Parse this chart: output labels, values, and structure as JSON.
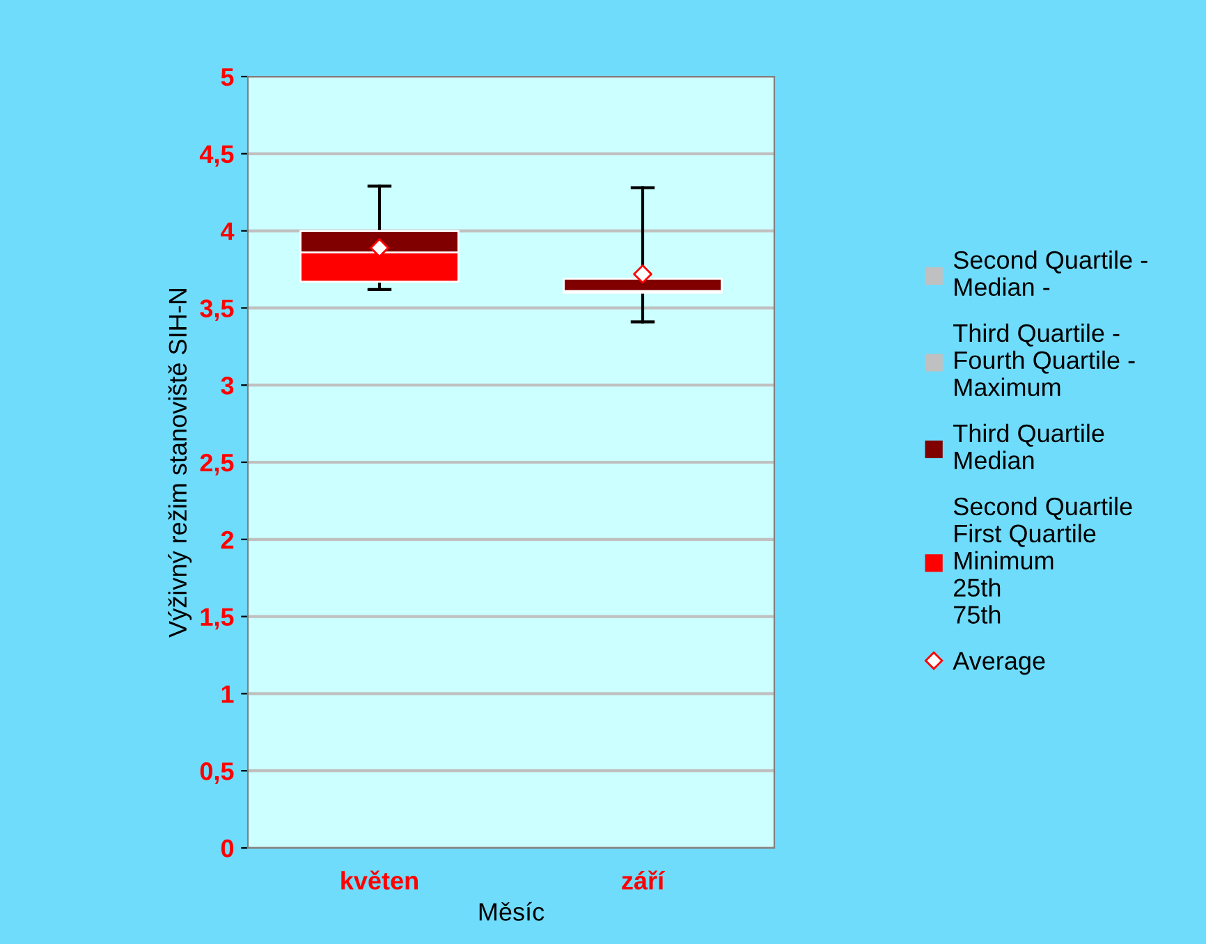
{
  "chart_data": {
    "type": "bar",
    "xlabel": "Měsíc",
    "ylabel": "Výživný režim stanoviště SIH-N",
    "categories": [
      "květen",
      "září"
    ],
    "series": [
      {
        "name": "Second Quartile\nFirst Quartile\nMinimum\n25th\n75th",
        "color": "#ff0000",
        "base": [
          3.67,
          3.6
        ],
        "values": [
          0.19,
          0.01
        ]
      },
      {
        "name": "Third Quartile\nMedian",
        "color": "#800000",
        "base": [
          3.86,
          3.61
        ],
        "values": [
          0.14,
          0.08
        ],
        "errors": [
          [
            3.62,
            4.29
          ],
          [
            3.41,
            4.28
          ]
        ]
      },
      {
        "name": "Third Quartile -\nFourth Quartile -\nMaximum",
        "color": "#c0c0c0",
        "values": [
          null,
          null
        ]
      },
      {
        "name": "Second Quartile -\nMedian -",
        "color": "#c0c0c0",
        "values": [
          null,
          null
        ]
      },
      {
        "name": "Average",
        "type": "scatter",
        "marker": "diamond",
        "color": "#ff0000",
        "x": [
          "květen",
          "září"
        ],
        "values": [
          3.89,
          3.72
        ]
      }
    ],
    "ylim": [
      0,
      5
    ],
    "yticks": [
      0,
      {
        "value": 0.5,
        "label": "0,5"
      },
      1,
      {
        "value": 1.5,
        "label": "1,5"
      },
      2,
      {
        "value": 2.5,
        "label": "2,5"
      },
      3,
      {
        "value": 3.5,
        "label": "3,5"
      },
      4,
      {
        "value": 4.5,
        "label": "4,5"
      },
      5
    ],
    "grid": "y",
    "legend": "right"
  }
}
